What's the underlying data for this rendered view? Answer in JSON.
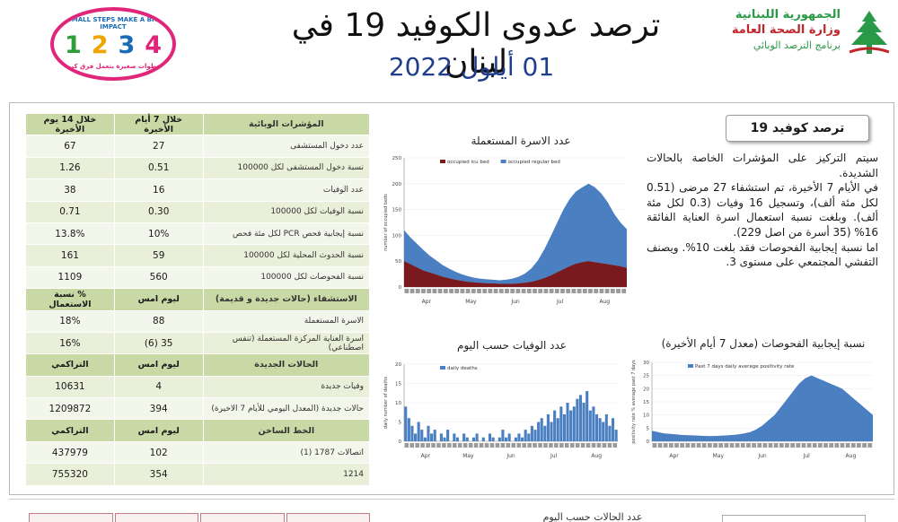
{
  "header": {
    "title": "ترصد عدوى الكوفيد 19 في لبنان",
    "date": "01 أيلول 2022",
    "ministry_line1": "الجمهورية اللبنانية",
    "ministry_line2": "وزارة الصحة العامة",
    "ministry_line3": "برنامج الترصد الوبائي",
    "campaign_top": "SMALL STEPS MAKE A BIG IMPACT",
    "campaign_digits": [
      "1",
      "2",
      "3",
      "4"
    ],
    "campaign_bottom": "خطوات صغيرة بتعمل فرق كبير"
  },
  "stats": {
    "indicators_header": [
      "المؤشرات الوبائية",
      "خلال 7 أيام الأخيرة",
      "خلال 14 يوم الأخيرة"
    ],
    "indicators": [
      {
        "label": "عدد دخول المستشفى",
        "v7": "27",
        "v14": "67"
      },
      {
        "label": "نسبة دخول المستشفى لكل 100000",
        "v7": "0.51",
        "v14": "1.26"
      },
      {
        "label": "عدد الوفيات",
        "v7": "16",
        "v14": "38"
      },
      {
        "label": "نسبة الوفيات لكل 100000",
        "v7": "0.30",
        "v14": "0.71"
      },
      {
        "label": "نسبة إيجابية فحص PCR لكل مئة فحص",
        "v7": "10%",
        "v14": "13.8%"
      },
      {
        "label": "نسبة الحدوث المحلية لكل 100000",
        "v7": "59",
        "v14": "161"
      },
      {
        "label": "نسبة الفحوصات لكل 100000",
        "v7": "560",
        "v14": "1109"
      }
    ],
    "hospital_header": [
      "الاستشفاء (حالات جديدة و قديمة)",
      "ليوم امس",
      "% نسبة الاستعمال"
    ],
    "hospital": [
      {
        "label": "الاسرة المستعملة",
        "today": "88",
        "pct": "18%"
      },
      {
        "label": "اسرة العناية المركزة المستعملة (تنفس اصطناعي)",
        "today": "35 (6)",
        "pct": "16%"
      }
    ],
    "new_cases_header": [
      "الحالات الجديدة",
      "ليوم امس",
      "التراكمي"
    ],
    "new_cases": [
      {
        "label": "وفيات جديدة",
        "today": "4",
        "cum": "10631"
      },
      {
        "label": "حالات جديدة (المعدل اليومي للأيام 7 الاخيرة)",
        "today": "394",
        "cum": "1209872"
      }
    ],
    "hotline_header": [
      "الخط الساخن",
      "ليوم امس",
      "التراكمي"
    ],
    "hotline": [
      {
        "label": "اتصالات 1787 (1)",
        "today": "102",
        "cum": "437979"
      },
      {
        "label": "1214",
        "today": "354",
        "cum": "755320"
      }
    ]
  },
  "summary": {
    "title": "ترصد كوفيد 19",
    "paragraphs": [
      "سيتم التركيز على المؤشرات الخاصة بالحالات الشديدة.",
      "في الأيام 7 الأخيرة، تم استشفاء 27 مرضى (0.51 لكل مئة ألف)، وتسجيل 16 وفيات (0.3 لكل مئة ألف). وبلغت نسبة استعمال اسرة العناية الفائقة 16% (35 أسرة من اصل 229).",
      "اما نسبة إيجابية الفحوصات فقد بلغت 10%. ويصنف التفشي المجتمعي على مستوى 3."
    ]
  },
  "chart_data": [
    {
      "type": "area",
      "title": "عدد الاسرة المستعملة",
      "ylabel": "number of occupied beds",
      "ylim": [
        0,
        250
      ],
      "yticks": [
        0,
        50,
        100,
        150,
        200,
        250
      ],
      "x_ticklabels": [
        "Apr",
        "May",
        "Jun",
        "Jul",
        "Aug"
      ],
      "legend": [
        "occupied icu bed",
        "occupied regular bed"
      ],
      "series": [
        {
          "name": "occupied icu bed",
          "color": "#7a1a1e",
          "values": [
            50,
            44,
            38,
            32,
            28,
            24,
            20,
            17,
            14,
            12,
            10,
            9,
            8,
            7,
            7,
            6,
            6,
            6,
            7,
            8,
            10,
            13,
            17,
            22,
            28,
            34,
            40,
            45,
            48,
            50,
            48,
            46,
            44,
            42,
            40,
            37
          ]
        },
        {
          "name": "occupied regular bed",
          "color": "#4a7fc1",
          "values": [
            60,
            52,
            46,
            40,
            33,
            28,
            23,
            19,
            16,
            13,
            11,
            9,
            8,
            8,
            7,
            7,
            8,
            10,
            13,
            18,
            26,
            38,
            55,
            75,
            95,
            115,
            130,
            140,
            145,
            150,
            145,
            135,
            120,
            100,
            85,
            75
          ]
        }
      ]
    },
    {
      "type": "bar",
      "title": "عدد الوفيات حسب اليوم",
      "ylabel": "daily number of deaths",
      "ylim": [
        0,
        20
      ],
      "yticks": [
        0,
        5,
        10,
        15,
        20
      ],
      "x_ticklabels": [
        "Apr",
        "May",
        "Jun",
        "Jul",
        "Aug"
      ],
      "legend": [
        "daily deaths"
      ],
      "series": [
        {
          "name": "daily deaths",
          "color": "#4a7fc1",
          "values": [
            9,
            6,
            4,
            2,
            5,
            3,
            1,
            4,
            2,
            3,
            0,
            2,
            1,
            3,
            0,
            2,
            1,
            0,
            2,
            1,
            0,
            1,
            2,
            0,
            1,
            0,
            2,
            1,
            0,
            1,
            3,
            1,
            2,
            0,
            1,
            2,
            1,
            3,
            2,
            4,
            3,
            5,
            6,
            4,
            7,
            5,
            8,
            6,
            9,
            7,
            10,
            8,
            9,
            11,
            12,
            10,
            13,
            8,
            9,
            7,
            6,
            5,
            7,
            4,
            6,
            3
          ]
        }
      ]
    },
    {
      "type": "area",
      "title": "نسبة إيجابية الفحوصات (معدل 7 أيام الأخيرة)",
      "ylabel": "positivity rate % average past 7 days",
      "ylim": [
        0,
        30
      ],
      "yticks": [
        0,
        5,
        10,
        15,
        20,
        25,
        30
      ],
      "x_ticklabels": [
        "Apr",
        "May",
        "Jun",
        "Jul",
        "Aug"
      ],
      "legend": [
        "Past 7 days daily average positivity rate"
      ],
      "series": [
        {
          "name": "Past 7 days daily average positivity rate",
          "color": "#4a7fc1",
          "values": [
            4,
            3.5,
            3,
            2.8,
            2.6,
            2.4,
            2.3,
            2.2,
            2.1,
            2.0,
            2.0,
            2.1,
            2.2,
            2.4,
            2.6,
            3,
            3.5,
            4.5,
            6,
            8,
            10,
            13,
            16,
            19,
            22,
            24,
            25,
            24,
            23,
            22,
            21,
            20,
            18,
            16,
            14,
            12,
            10
          ]
        }
      ]
    }
  ],
  "bottom": {
    "title": "عدد الحالات حسب اليوم"
  }
}
